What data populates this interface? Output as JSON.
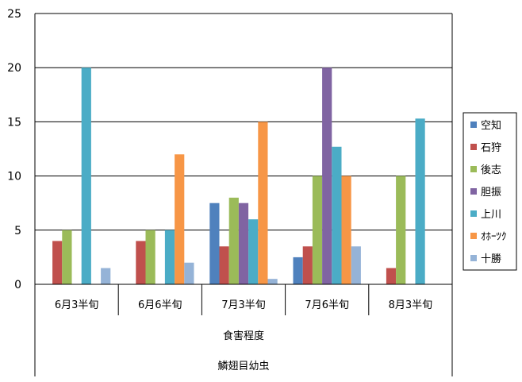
{
  "chart_data": {
    "type": "bar",
    "categories": [
      "6月3半旬",
      "6月6半旬",
      "7月3半旬",
      "7月6半旬",
      "8月3半旬"
    ],
    "category_groups": [
      "食害程度",
      "鱗翅目幼虫"
    ],
    "ylim": [
      0,
      25
    ],
    "yticks": [
      0,
      5,
      10,
      15,
      20,
      25
    ],
    "grid": true,
    "legend_position": "right",
    "series": [
      {
        "name": "空知",
        "color": "#4F81BD",
        "values": [
          0,
          0,
          7.5,
          2.5,
          0
        ]
      },
      {
        "name": "石狩",
        "color": "#C0504D",
        "values": [
          4,
          4,
          3.5,
          3.5,
          1.5
        ]
      },
      {
        "name": "後志",
        "color": "#9BBB59",
        "values": [
          5,
          5,
          8,
          10,
          10
        ]
      },
      {
        "name": "胆振",
        "color": "#8064A2",
        "values": [
          0,
          0,
          7.5,
          20,
          0
        ]
      },
      {
        "name": "上川",
        "color": "#4BACC6",
        "values": [
          20,
          5,
          6,
          12.7,
          15.3
        ]
      },
      {
        "name": "ｵﾎｰﾂｸ",
        "color": "#F79646",
        "values": [
          0,
          12,
          15,
          10,
          0
        ]
      },
      {
        "name": "十勝",
        "color": "#95B3D7",
        "values": [
          1.5,
          2,
          0.5,
          3.5,
          0
        ]
      }
    ]
  }
}
